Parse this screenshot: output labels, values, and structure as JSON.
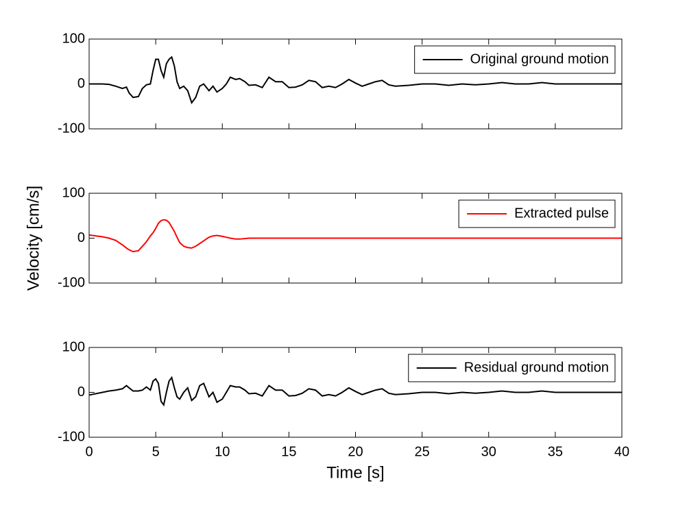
{
  "chart_data": [
    {
      "type": "line",
      "x": [
        0,
        1,
        1.5,
        2,
        2.5,
        2.8,
        3,
        3.3,
        3.7,
        4,
        4.3,
        4.6,
        4.8,
        5,
        5.2,
        5.4,
        5.6,
        5.8,
        6,
        6.2,
        6.4,
        6.6,
        6.8,
        7.1,
        7.4,
        7.7,
        8,
        8.3,
        8.6,
        9,
        9.3,
        9.6,
        10,
        10.3,
        10.6,
        11,
        11.3,
        11.7,
        12,
        12.5,
        13,
        13.5,
        14,
        14.5,
        15,
        15.5,
        16,
        16.5,
        17,
        17.5,
        18,
        18.5,
        19,
        19.5,
        20,
        20.5,
        21,
        21.5,
        22,
        22.5,
        23,
        24,
        25,
        26,
        27,
        28,
        29,
        30,
        31,
        32,
        33,
        34,
        35,
        36,
        37,
        38,
        39,
        40
      ],
      "series": [
        {
          "name": "Original ground motion",
          "color": "#000000",
          "values": [
            0,
            0,
            -1,
            -5,
            -10,
            -7,
            -20,
            -30,
            -28,
            -10,
            -2,
            0,
            30,
            55,
            55,
            30,
            15,
            45,
            55,
            60,
            40,
            5,
            -10,
            -5,
            -15,
            -42,
            -30,
            -5,
            0,
            -15,
            -5,
            -18,
            -10,
            0,
            15,
            10,
            12,
            5,
            -3,
            -2,
            -8,
            15,
            5,
            5,
            -8,
            -7,
            -2,
            8,
            5,
            -8,
            -5,
            -8,
            0,
            10,
            2,
            -5,
            0,
            5,
            8,
            -2,
            -5,
            -3,
            0,
            0,
            -3,
            0,
            -2,
            0,
            3,
            0,
            0,
            3,
            0,
            0,
            0,
            0,
            0,
            0
          ]
        }
      ],
      "xlim": [
        0,
        40
      ],
      "xticks": [
        0,
        5,
        10,
        15,
        20,
        25,
        30,
        35,
        40
      ],
      "show_xticklabels": false,
      "ylim": [
        -100,
        100
      ],
      "yticks": [
        -100,
        0,
        100
      ],
      "legend": "northeast",
      "grid": false
    },
    {
      "type": "line",
      "x": [
        0,
        1,
        1.5,
        2,
        2.5,
        2.8,
        3,
        3.3,
        3.7,
        4,
        4.3,
        4.6,
        4.8,
        5,
        5.2,
        5.4,
        5.6,
        5.8,
        6,
        6.2,
        6.4,
        6.6,
        6.8,
        7.1,
        7.4,
        7.7,
        8,
        8.3,
        8.6,
        9,
        9.3,
        9.6,
        10,
        10.3,
        10.6,
        11,
        11.3,
        11.7,
        12,
        12.5,
        13,
        13.5,
        14,
        14.5,
        15,
        15.5,
        16,
        16.5,
        17,
        17.5,
        18,
        18.5,
        19,
        19.5,
        20,
        20.5,
        21,
        21.5,
        22,
        22.5,
        23,
        24,
        25,
        26,
        27,
        28,
        29,
        30,
        31,
        32,
        33,
        34,
        35,
        36,
        37,
        38,
        39,
        40
      ],
      "series": [
        {
          "name": "Extracted pulse",
          "color": "#ff0000",
          "values": [
            7,
            3,
            0,
            -5,
            -15,
            -22,
            -26,
            -30,
            -28,
            -18,
            -8,
            5,
            12,
            22,
            33,
            39,
            41,
            40,
            35,
            25,
            15,
            2,
            -10,
            -18,
            -21,
            -22,
            -18,
            -12,
            -6,
            2,
            5,
            6,
            4,
            2,
            0,
            -2,
            -2,
            -1,
            0,
            0,
            0,
            0,
            0,
            0,
            0,
            0,
            0,
            0,
            0,
            0,
            0,
            0,
            0,
            0,
            0,
            0,
            0,
            0,
            0,
            0,
            0,
            0,
            0,
            0,
            0,
            0,
            0,
            0,
            0,
            0,
            0,
            0,
            0,
            0,
            0,
            0,
            0,
            0
          ]
        }
      ],
      "xlim": [
        0,
        40
      ],
      "xticks": [
        0,
        5,
        10,
        15,
        20,
        25,
        30,
        35,
        40
      ],
      "show_xticklabels": false,
      "ylim": [
        -100,
        100
      ],
      "yticks": [
        -100,
        0,
        100
      ],
      "legend": "northeast",
      "grid": false,
      "ylabel": "Velocity [cm/s]"
    },
    {
      "type": "line",
      "x": [
        0,
        1,
        1.5,
        2,
        2.5,
        2.8,
        3,
        3.3,
        3.7,
        4,
        4.3,
        4.6,
        4.8,
        5,
        5.2,
        5.4,
        5.6,
        5.8,
        6,
        6.2,
        6.4,
        6.6,
        6.8,
        7.1,
        7.4,
        7.7,
        8,
        8.3,
        8.6,
        9,
        9.3,
        9.6,
        10,
        10.3,
        10.6,
        11,
        11.3,
        11.7,
        12,
        12.5,
        13,
        13.5,
        14,
        14.5,
        15,
        15.5,
        16,
        16.5,
        17,
        17.5,
        18,
        18.5,
        19,
        19.5,
        20,
        20.5,
        21,
        21.5,
        22,
        22.5,
        23,
        24,
        25,
        26,
        27,
        28,
        29,
        30,
        31,
        32,
        33,
        34,
        35,
        36,
        37,
        38,
        39,
        40
      ],
      "series": [
        {
          "name": "Residual ground motion",
          "color": "#000000",
          "values": [
            -6,
            0,
            3,
            5,
            8,
            15,
            10,
            3,
            3,
            5,
            12,
            5,
            25,
            30,
            20,
            -20,
            -28,
            0,
            25,
            33,
            10,
            -10,
            -15,
            0,
            10,
            -18,
            -10,
            15,
            20,
            -10,
            0,
            -22,
            -15,
            0,
            15,
            12,
            12,
            5,
            -3,
            -2,
            -8,
            15,
            5,
            5,
            -8,
            -7,
            -2,
            8,
            5,
            -8,
            -5,
            -8,
            0,
            10,
            2,
            -5,
            0,
            5,
            8,
            -2,
            -5,
            -3,
            0,
            0,
            -3,
            0,
            -2,
            0,
            3,
            0,
            0,
            3,
            0,
            0,
            0,
            0,
            0,
            0
          ]
        }
      ],
      "xlim": [
        0,
        40
      ],
      "xticks": [
        0,
        5,
        10,
        15,
        20,
        25,
        30,
        35,
        40
      ],
      "show_xticklabels": true,
      "ylim": [
        -100,
        100
      ],
      "yticks": [
        -100,
        0,
        100
      ],
      "legend": "northeast",
      "grid": false,
      "xlabel": "Time [s]"
    }
  ]
}
